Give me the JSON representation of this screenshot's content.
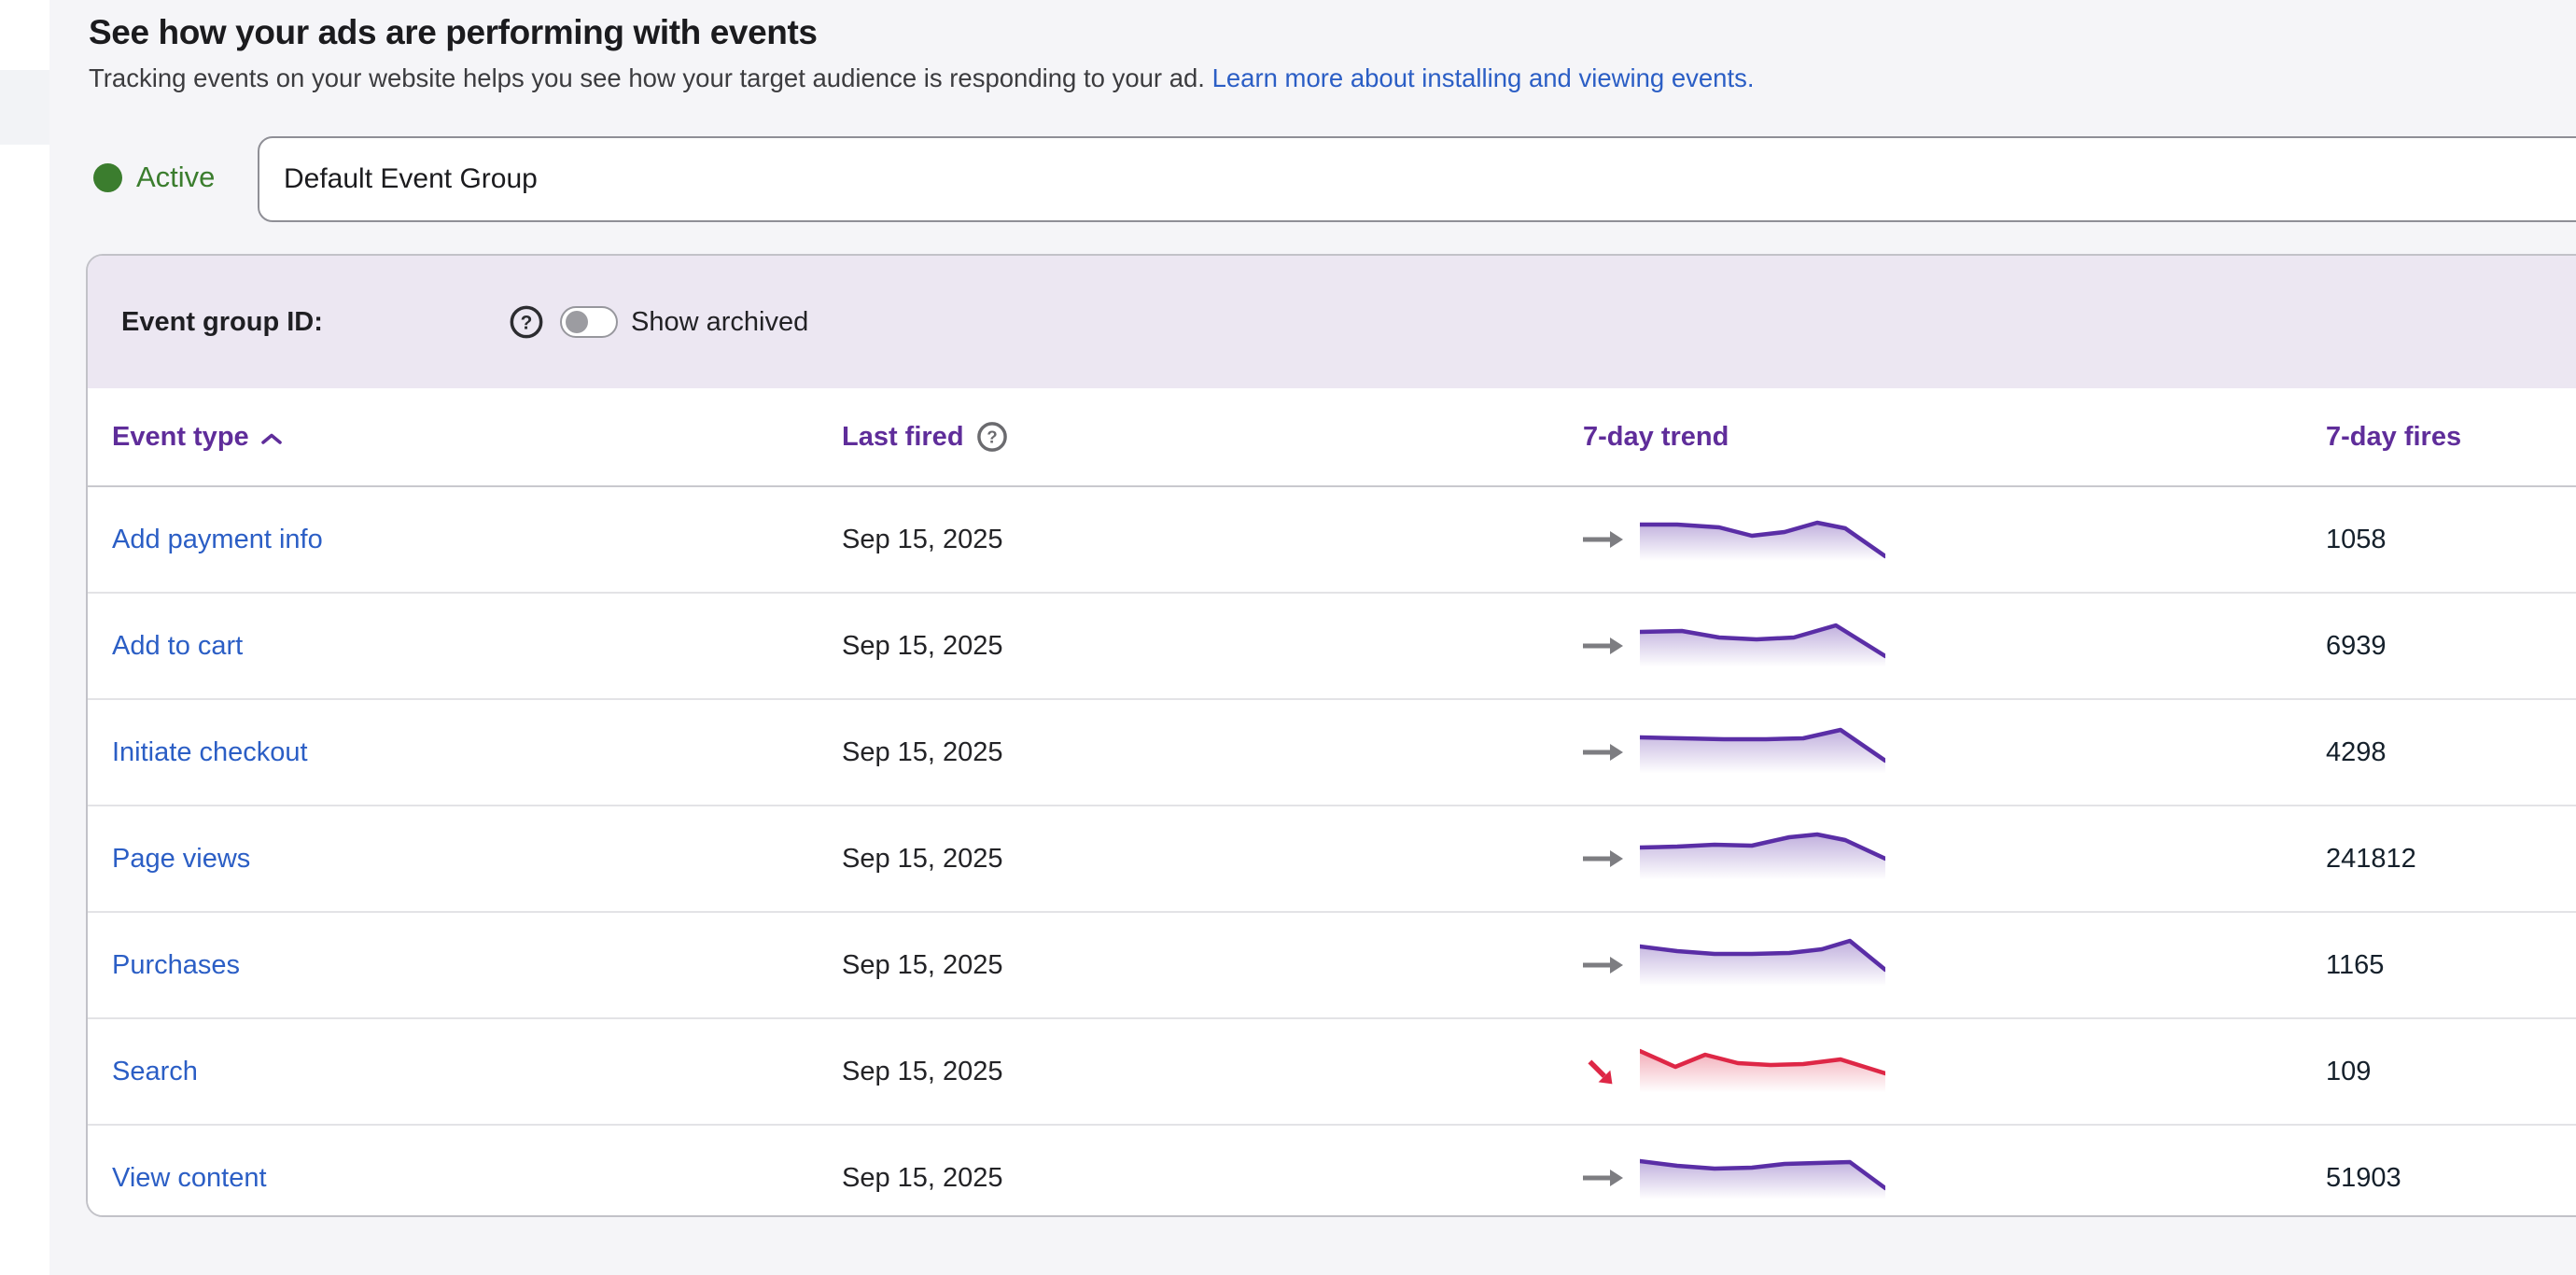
{
  "header": {
    "title": "See how your ads are performing with events",
    "subtitle": "Tracking events on your website helps you see how your target audience is responding to your ad.",
    "learn_more_link": "Learn more about installing and viewing events."
  },
  "status": {
    "label": "Active"
  },
  "group_input": {
    "value": "Default Event Group"
  },
  "bar": {
    "group_id_label": "Event group ID:",
    "help_icon": "question-circle",
    "toggle_state": "off",
    "show_archived_label": "Show archived"
  },
  "table": {
    "columns": [
      {
        "label": "Event type",
        "sort_icon": "chevron-up"
      },
      {
        "label": "Last fired",
        "help_icon": "question-circle"
      },
      {
        "label": "7-day trend"
      },
      {
        "label": "7-day fires"
      }
    ],
    "rows": [
      {
        "event": "Add payment info",
        "last_fired": "Sep 15, 2025",
        "fires": "1058",
        "trend": "flat",
        "spark": [
          [
            0,
            15
          ],
          [
            40,
            15
          ],
          [
            85,
            18
          ],
          [
            120,
            27
          ],
          [
            155,
            23
          ],
          [
            190,
            13
          ],
          [
            220,
            19
          ],
          [
            263,
            49
          ]
        ]
      },
      {
        "event": "Add to cart",
        "last_fired": "Sep 15, 2025",
        "fires": "6939",
        "trend": "flat",
        "spark": [
          [
            0,
            16
          ],
          [
            45,
            15
          ],
          [
            85,
            22
          ],
          [
            125,
            24
          ],
          [
            165,
            22
          ],
          [
            210,
            9
          ],
          [
            263,
            42
          ]
        ]
      },
      {
        "event": "Initiate checkout",
        "last_fired": "Sep 15, 2025",
        "fires": "4298",
        "trend": "flat",
        "spark": [
          [
            0,
            15
          ],
          [
            45,
            16
          ],
          [
            90,
            17
          ],
          [
            135,
            17
          ],
          [
            175,
            16
          ],
          [
            215,
            7
          ],
          [
            263,
            40
          ]
        ]
      },
      {
        "event": "Page views",
        "last_fired": "Sep 15, 2025",
        "fires": "241812",
        "trend": "flat",
        "spark": [
          [
            0,
            19
          ],
          [
            40,
            18
          ],
          [
            80,
            16
          ],
          [
            120,
            17
          ],
          [
            160,
            8
          ],
          [
            190,
            5
          ],
          [
            220,
            11
          ],
          [
            263,
            31
          ]
        ]
      },
      {
        "event": "Purchases",
        "last_fired": "Sep 15, 2025",
        "fires": "1165",
        "trend": "flat",
        "spark": [
          [
            0,
            11
          ],
          [
            40,
            16
          ],
          [
            80,
            19
          ],
          [
            120,
            19
          ],
          [
            160,
            18
          ],
          [
            195,
            14
          ],
          [
            225,
            5
          ],
          [
            263,
            36
          ]
        ]
      },
      {
        "event": "Search",
        "last_fired": "Sep 15, 2025",
        "fires": "109",
        "trend": "down",
        "spark": [
          [
            0,
            9
          ],
          [
            38,
            26
          ],
          [
            70,
            13
          ],
          [
            105,
            22
          ],
          [
            140,
            24
          ],
          [
            175,
            23
          ],
          [
            215,
            18
          ],
          [
            263,
            33
          ]
        ]
      },
      {
        "event": "View content",
        "last_fired": "Sep 15, 2025",
        "fires": "51903",
        "trend": "flat",
        "spark": [
          [
            0,
            13
          ],
          [
            40,
            18
          ],
          [
            80,
            21
          ],
          [
            120,
            20
          ],
          [
            155,
            16
          ],
          [
            190,
            15
          ],
          [
            225,
            14
          ],
          [
            263,
            42
          ]
        ]
      }
    ]
  },
  "colors": {
    "accent_purple": "#5F2D9A",
    "link_blue": "#2B5EC5",
    "status_green": "#3B7D2E",
    "lavender_bar": "#ECE7F2",
    "spark_purple": "#5A2EA6",
    "spark_red": "#DE2746",
    "arrow_grey": "#7D7D81"
  }
}
